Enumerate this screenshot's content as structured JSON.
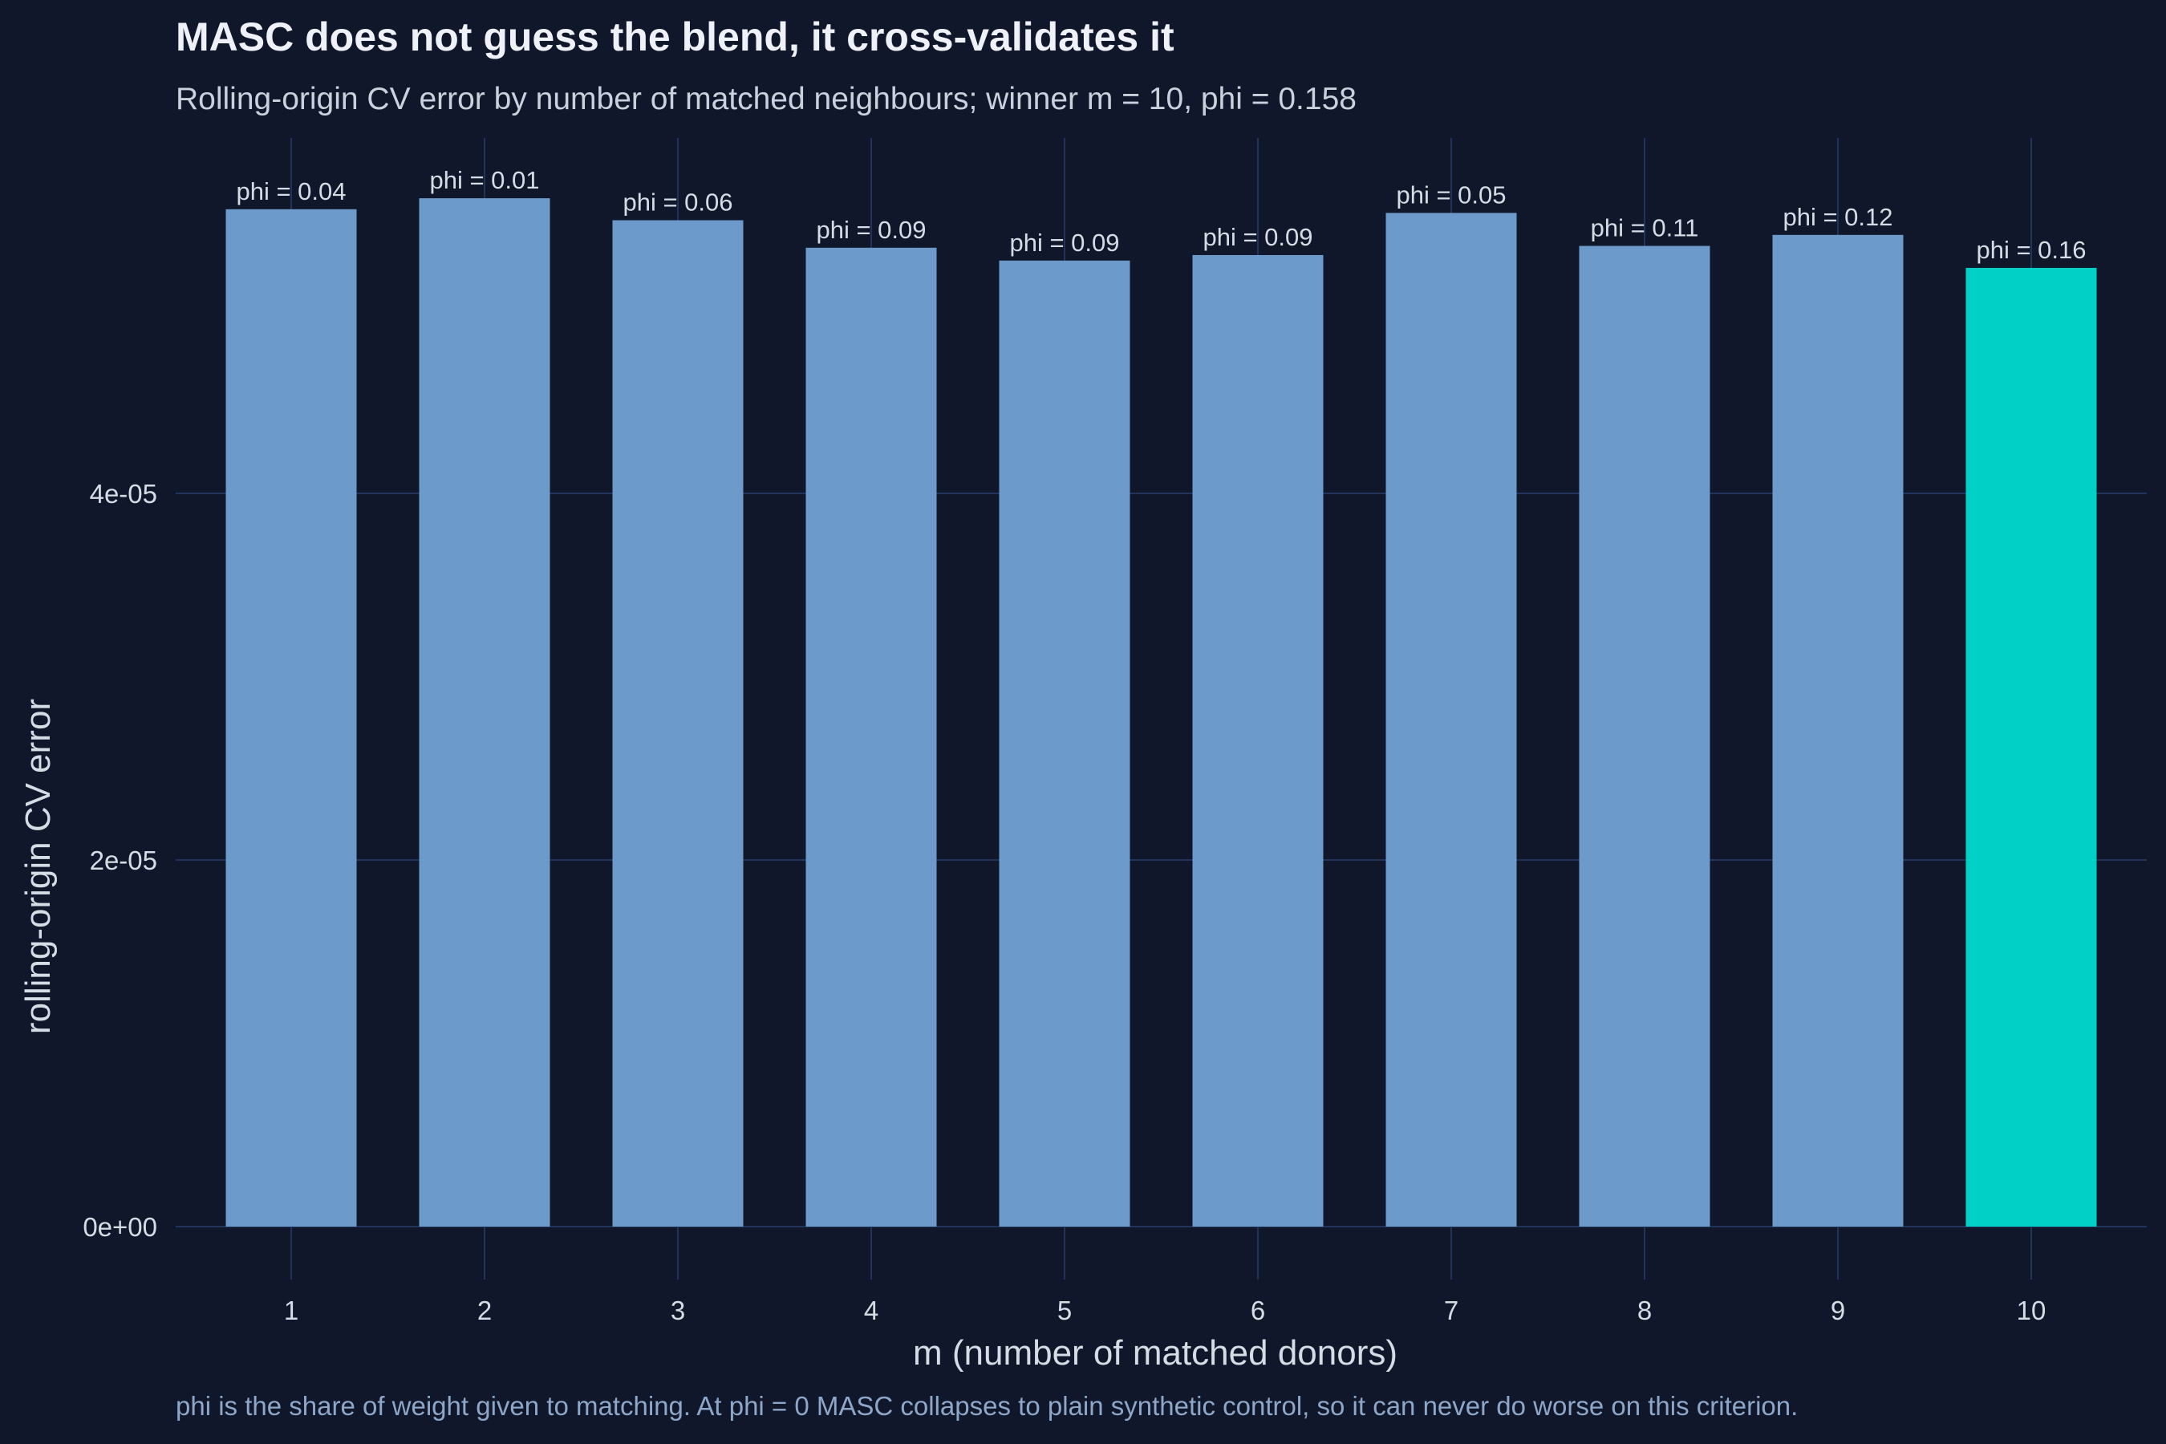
{
  "chart_data": {
    "type": "bar",
    "title": "MASC does not guess the blend, it cross-validates it",
    "subtitle": "Rolling-origin CV error by number of matched neighbours; winner m = 10, phi = 0.158",
    "caption": "phi is the share of weight given to matching. At phi = 0 MASC collapses to plain synthetic control, so it can never do worse on this criterion.",
    "xlabel": "m (number of matched donors)",
    "ylabel": "rolling-origin CV error",
    "categories": [
      "1",
      "2",
      "3",
      "4",
      "5",
      "6",
      "7",
      "8",
      "9",
      "10"
    ],
    "values": [
      5.55e-05,
      5.61e-05,
      5.49e-05,
      5.34e-05,
      5.27e-05,
      5.3e-05,
      5.53e-05,
      5.35e-05,
      5.41e-05,
      5.23e-05
    ],
    "bar_labels": [
      "phi = 0.04",
      "phi = 0.01",
      "phi = 0.06",
      "phi = 0.09",
      "phi = 0.09",
      "phi = 0.09",
      "phi = 0.05",
      "phi = 0.11",
      "phi = 0.12",
      "phi = 0.16"
    ],
    "highlight_index": 9,
    "yticks": [
      0,
      2e-05,
      4e-05
    ],
    "ytick_labels": [
      "0e+00",
      "2e-05",
      "4e-05"
    ],
    "ylim": [
      0,
      5.8e-05
    ],
    "grid": true,
    "legend": "none",
    "colors": {
      "background": "#10172a",
      "bar": "#6c9bcb",
      "highlight": "#00d0c6",
      "grid": "#22335a"
    }
  }
}
